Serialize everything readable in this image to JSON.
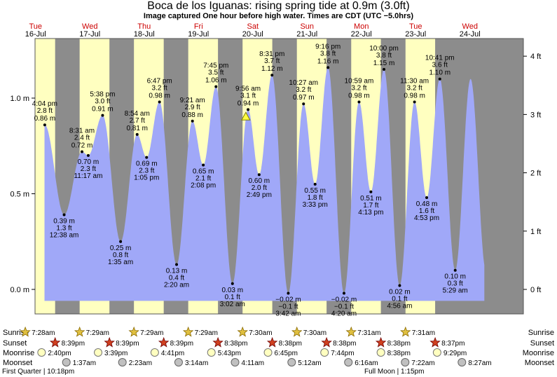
{
  "title": "Boca de los Iguanas: rising  spring tide at 0.9m (3.0ft)",
  "subtitle": "Image captured One hour before high water. Times are CDT (UTC −5.0hrs)",
  "chart_data": {
    "type": "area",
    "x_start": "Tue 16-Jul 00:00",
    "x_end": "Thu 25-Jul 00:00",
    "ylim_m": [
      -0.1,
      1.3
    ],
    "left_axis_ticks_m": [
      "0.0 m",
      "0.5 m",
      "1.0 m"
    ],
    "right_axis_ticks_ft": [
      "0 ft",
      "1 ft",
      "2 ft",
      "3 ft",
      "4 ft"
    ],
    "days": [
      {
        "dow": "Tue",
        "date": "16-Jul"
      },
      {
        "dow": "Wed",
        "date": "17-Jul"
      },
      {
        "dow": "Thu",
        "date": "18-Jul"
      },
      {
        "dow": "Fri",
        "date": "19-Jul"
      },
      {
        "dow": "Sat",
        "date": "20-Jul"
      },
      {
        "dow": "Sun",
        "date": "21-Jul"
      },
      {
        "dow": "Mon",
        "date": "22-Jul"
      },
      {
        "dow": "Tue",
        "date": "23-Jul"
      },
      {
        "dow": "Wed",
        "date": "24-Jul"
      }
    ],
    "extremes": [
      {
        "day": 0,
        "time": "4:04 pm",
        "m": "0.86 m",
        "ft": "2.8 ft",
        "type": "high"
      },
      {
        "day": 1,
        "time": "12:38 am",
        "m": "0.39 m",
        "ft": "1.3 ft",
        "type": "low"
      },
      {
        "day": 1,
        "time": "8:31 am",
        "m": "0.72 m",
        "ft": "2.4 ft",
        "type": "high"
      },
      {
        "day": 1,
        "time": "11:17 am",
        "m": "0.70 m",
        "ft": "2.3 ft",
        "type": "low"
      },
      {
        "day": 1,
        "time": "5:38 pm",
        "m": "0.91 m",
        "ft": "3.0 ft",
        "type": "high"
      },
      {
        "day": 2,
        "time": "1:35 am",
        "m": "0.25 m",
        "ft": "0.8 ft",
        "type": "low"
      },
      {
        "day": 2,
        "time": "8:54 am",
        "m": "0.81 m",
        "ft": "2.7 ft",
        "type": "high"
      },
      {
        "day": 2,
        "time": "1:05 pm",
        "m": "0.69 m",
        "ft": "2.3 ft",
        "type": "low"
      },
      {
        "day": 2,
        "time": "6:47 pm",
        "m": "0.98 m",
        "ft": "3.2 ft",
        "type": "high"
      },
      {
        "day": 3,
        "time": "2:20 am",
        "m": "0.13 m",
        "ft": "0.4 ft",
        "type": "low"
      },
      {
        "day": 3,
        "time": "9:21 am",
        "m": "0.88 m",
        "ft": "2.9 ft",
        "type": "high"
      },
      {
        "day": 3,
        "time": "2:08 pm",
        "m": "0.65 m",
        "ft": "2.1 ft",
        "type": "low"
      },
      {
        "day": 3,
        "time": "7:45 pm",
        "m": "1.06 m",
        "ft": "3.5 ft",
        "type": "high"
      },
      {
        "day": 4,
        "time": "3:02 am",
        "m": "0.03 m",
        "ft": "0.1 ft",
        "type": "low"
      },
      {
        "day": 4,
        "time": "9:56 am",
        "m": "0.94 m",
        "ft": "3.1 ft",
        "type": "high"
      },
      {
        "day": 4,
        "time": "2:49 pm",
        "m": "0.60 m",
        "ft": "2.0 ft",
        "type": "low"
      },
      {
        "day": 4,
        "time": "8:31 pm",
        "m": "1.12 m",
        "ft": "3.7 ft",
        "type": "high"
      },
      {
        "day": 5,
        "time": "3:42 am",
        "m": "−0.02 m",
        "ft": "−0.1 ft",
        "type": "low"
      },
      {
        "day": 5,
        "time": "10:27 am",
        "m": "0.97 m",
        "ft": "3.2 ft",
        "type": "high"
      },
      {
        "day": 5,
        "time": "3:33 pm",
        "m": "0.55 m",
        "ft": "1.8 ft",
        "type": "low"
      },
      {
        "day": 5,
        "time": "9:16 pm",
        "m": "1.16 m",
        "ft": "3.8 ft",
        "type": "high"
      },
      {
        "day": 6,
        "time": "4:20 am",
        "m": "−0.02 m",
        "ft": "−0.1 ft",
        "type": "low"
      },
      {
        "day": 6,
        "time": "10:59 am",
        "m": "0.98 m",
        "ft": "3.2 ft",
        "type": "high"
      },
      {
        "day": 6,
        "time": "4:13 pm",
        "m": "0.51 m",
        "ft": "1.7 ft",
        "type": "low"
      },
      {
        "day": 6,
        "time": "10:00 pm",
        "m": "1.15 m",
        "ft": "3.8 ft",
        "type": "high"
      },
      {
        "day": 7,
        "time": "4:56 am",
        "m": "0.02 m",
        "ft": "0.1 ft",
        "type": "low"
      },
      {
        "day": 7,
        "time": "11:30 am",
        "m": "0.98 m",
        "ft": "3.2 ft",
        "type": "high"
      },
      {
        "day": 7,
        "time": "4:53 pm",
        "m": "0.48 m",
        "ft": "1.6 ft",
        "type": "low"
      },
      {
        "day": 7,
        "time": "10:41 pm",
        "m": "1.10 m",
        "ft": "3.6 ft",
        "type": "high"
      },
      {
        "day": 8,
        "time": "5:29 am",
        "m": "0.10 m",
        "ft": "0.3 ft",
        "type": "low"
      }
    ],
    "current_marker": {
      "day": 4,
      "time": "8:56 am",
      "m": 0.9
    },
    "sunrise": {
      "label": "Sunrise",
      "times": [
        "7:28am",
        "7:29am",
        "7:29am",
        "7:29am",
        "7:30am",
        "7:30am",
        "7:31am",
        "7:31am"
      ]
    },
    "sunset": {
      "label": "Sunset",
      "times": [
        "8:39pm",
        "8:39pm",
        "8:39pm",
        "8:38pm",
        "8:38pm",
        "8:38pm",
        "8:38pm",
        "8:37pm"
      ]
    },
    "moonrise": {
      "label": "Moonrise",
      "times": [
        "2:40pm",
        "3:39pm",
        "4:41pm",
        "5:43pm",
        "6:45pm",
        "7:44pm",
        "8:38pm",
        "9:29pm"
      ]
    },
    "moonset": {
      "label": "Moonset",
      "times": [
        "1:37am",
        "2:23am",
        "3:14am",
        "4:11am",
        "5:12am",
        "6:16am",
        "7:22am",
        "8:27am"
      ]
    },
    "moon_phases": [
      "First Quarter | 10:18pm",
      "Full Moon | 1:15pm"
    ],
    "colors": {
      "night": "#8c8c8c",
      "day": "#ffffc0",
      "water": "#a0a8f8",
      "day_label": "#cc0000",
      "sun": "#e0c040",
      "sunset_star": "#d04020",
      "moonrise": "#ffffc0",
      "moonset": "#c0c0c0"
    }
  }
}
